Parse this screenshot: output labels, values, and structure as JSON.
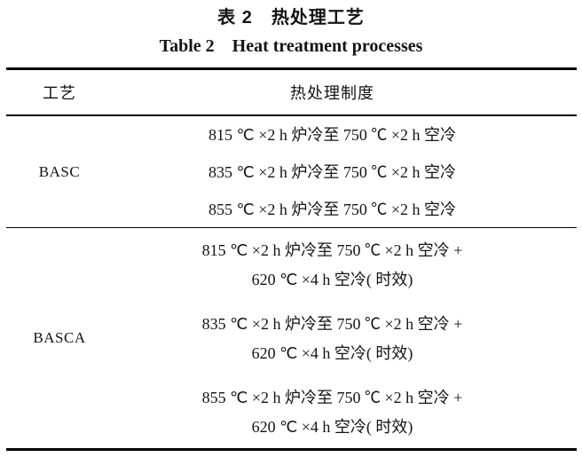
{
  "caption": {
    "title_cn": "表 2　热处理工艺",
    "title_en": "Table 2　Heat treatment processes"
  },
  "table": {
    "header": {
      "process": "工艺",
      "regime": "热处理制度"
    },
    "sections": [
      {
        "label": "BASC",
        "rows": [
          [
            "815 ℃ ×2 h 炉冷至 750 ℃ ×2 h 空冷"
          ],
          [
            "835 ℃ ×2 h 炉冷至 750 ℃ ×2 h 空冷"
          ],
          [
            "855 ℃ ×2 h 炉冷至 750 ℃ ×2 h 空冷"
          ]
        ]
      },
      {
        "label": "BASCA",
        "rows": [
          [
            "815 ℃ ×2 h 炉冷至 750 ℃ ×2 h 空冷 +",
            "620 ℃ ×4 h 空冷( 时效)"
          ],
          [
            "835 ℃ ×2 h 炉冷至 750 ℃ ×2 h 空冷 +",
            "620 ℃ ×4 h 空冷( 时效)"
          ],
          [
            "855 ℃ ×2 h 炉冷至 750 ℃ ×2 h 空冷 +",
            "620 ℃ ×4 h 空冷( 时效)"
          ]
        ]
      }
    ]
  },
  "colors": {
    "background": "#ffffff",
    "text": "#141414",
    "rule": "#000000"
  }
}
